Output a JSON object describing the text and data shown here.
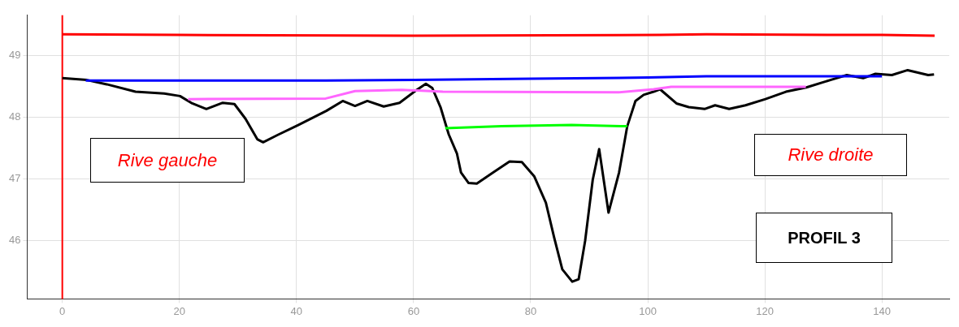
{
  "chart_data": {
    "type": "line",
    "xlim": [
      -6,
      151.5
    ],
    "ylim": [
      45.05,
      49.65
    ],
    "xticks": [
      0,
      20,
      40,
      60,
      80,
      100,
      120,
      140
    ],
    "yticks": [
      46,
      47,
      48,
      49
    ],
    "grid": true,
    "legend": false,
    "marker": "none",
    "line_style": "solid",
    "ref_lines": [
      {
        "axis": "x",
        "value": 0,
        "color": "#ff0000"
      }
    ],
    "annotations": [
      "Rive gauche",
      "Rive droite",
      "PROFIL 3"
    ],
    "series": [
      {
        "color": "#ff0000",
        "x": [
          0,
          20,
          60,
          102,
          110,
          140,
          149
        ],
        "values": [
          49.34,
          49.33,
          49.32,
          49.33,
          49.34,
          49.33,
          49.32
        ]
      },
      {
        "color": "#0000ff",
        "x": [
          4,
          45,
          60,
          80,
          100,
          110,
          140
        ],
        "values": [
          48.59,
          48.59,
          48.6,
          48.62,
          48.64,
          48.66,
          48.66
        ]
      },
      {
        "color": "#ff66ff",
        "x": [
          21.5,
          45,
          50,
          58,
          65,
          95,
          101,
          104,
          127
        ],
        "values": [
          48.29,
          48.3,
          48.42,
          48.44,
          48.41,
          48.4,
          48.45,
          48.49,
          48.49
        ]
      },
      {
        "color": "#00ff00",
        "x": [
          65.4,
          75,
          87,
          96.5
        ],
        "values": [
          47.82,
          47.85,
          47.87,
          47.85
        ]
      },
      {
        "color": "#000000",
        "x": [
          0,
          4.2,
          7.6,
          12.5,
          17.4,
          20.1,
          22.2,
          24.6,
          27.4,
          29.4,
          31.3,
          33.3,
          34.3,
          36.8,
          40.3,
          45.1,
          47.9,
          50,
          52.1,
          54.9,
          57.6,
          60.4,
          62.1,
          63.2,
          64.6,
          66,
          67.4,
          68.1,
          69.4,
          70.8,
          73.6,
          76.4,
          78.5,
          80.6,
          82.6,
          84,
          85.4,
          87.1,
          88.2,
          89.3,
          90.6,
          91.7,
          93.3,
          95.1,
          96.5,
          97.9,
          99.3,
          101,
          102.1,
          104.9,
          107,
          109.7,
          111.5,
          113.9,
          116.7,
          120.1,
          123.6,
          127.1,
          131.2,
          134,
          136.8,
          138.9,
          141.7,
          144.4,
          147.9,
          148.9
        ],
        "values": [
          48.63,
          48.6,
          48.53,
          48.41,
          48.38,
          48.34,
          48.22,
          48.13,
          48.23,
          48.21,
          47.97,
          47.64,
          47.59,
          47.71,
          47.87,
          48.1,
          48.26,
          48.18,
          48.26,
          48.17,
          48.23,
          48.43,
          48.54,
          48.47,
          48.16,
          47.72,
          47.41,
          47.1,
          46.93,
          46.92,
          47.1,
          47.28,
          47.27,
          47.04,
          46.61,
          46.05,
          45.53,
          45.33,
          45.37,
          45.99,
          46.98,
          47.48,
          46.45,
          47.1,
          47.85,
          48.26,
          48.36,
          48.41,
          48.45,
          48.22,
          48.16,
          48.13,
          48.19,
          48.13,
          48.19,
          48.29,
          48.41,
          48.48,
          48.6,
          48.68,
          48.63,
          48.7,
          48.68,
          48.76,
          48.68,
          48.69
        ]
      }
    ]
  }
}
